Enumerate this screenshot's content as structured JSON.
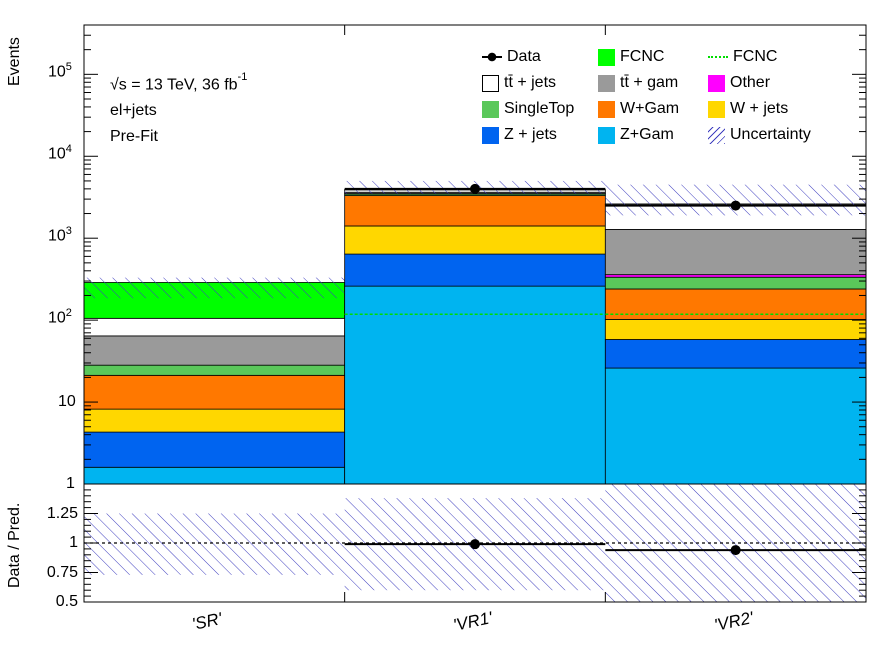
{
  "chart_data": {
    "type": "bar",
    "stacked": true,
    "categories": [
      "'SR'",
      "'VR1'",
      "'VR2'"
    ],
    "ylabel": "Events",
    "yscale": "log",
    "ylim": [
      1,
      400000
    ],
    "yticks": [
      {
        "v": 10,
        "label": "10"
      },
      {
        "v": 100,
        "label": "10",
        "exp": "2"
      },
      {
        "v": 1000,
        "label": "10",
        "exp": "3"
      },
      {
        "v": 10000,
        "label": "10",
        "exp": "4"
      },
      {
        "v": 100000,
        "label": "10",
        "exp": "5"
      }
    ],
    "annotations": {
      "energy": "√s = 13 TeV, 36 fb",
      "energy_exp": "-1",
      "channel": "el+jets",
      "stage": "Pre-Fit"
    },
    "series": [
      {
        "name": "Z+Gam",
        "color": "#00b4f0",
        "values": [
          1.6,
          260,
          26
        ]
      },
      {
        "name": "Z + jets",
        "color": "#0064f0",
        "values": [
          2.7,
          380,
          32
        ]
      },
      {
        "name": "W + jets",
        "color": "#ffd700",
        "values": [
          3.9,
          770,
          44
        ]
      },
      {
        "name": "W+Gam",
        "color": "#ff7800",
        "values": [
          13,
          1900,
          138
        ]
      },
      {
        "name": "SingleTop",
        "color": "#5ac85a",
        "values": [
          7,
          150,
          94
        ]
      },
      {
        "name": "Other",
        "color": "#ff00ff",
        "values": [
          0,
          40,
          25
        ]
      },
      {
        "name": "tt̄ +  gam",
        "color": "#9a9a9a",
        "values": [
          36,
          140,
          920
        ]
      },
      {
        "name": "tt̄ + jets",
        "color": "#ffffff",
        "values": [
          41,
          250,
          1320
        ]
      },
      {
        "name": "FCNC",
        "color": "#00ff00",
        "values": [
          183,
          30,
          20
        ]
      }
    ],
    "data": {
      "name": "Data",
      "values": [
        null,
        4000,
        2500
      ]
    },
    "fcnc_line": {
      "name": "FCNC",
      "color": "#00dd00",
      "values": [
        null,
        118,
        118
      ]
    },
    "uncertainty": {
      "name": "Uncertainty",
      "color": "#4040c0",
      "low": [
        185,
        3500,
        1900
      ],
      "high": [
        330,
        5000,
        4500
      ]
    },
    "legend": {
      "placement": "top-right",
      "items": [
        {
          "label": "Data",
          "kind": "data"
        },
        {
          "label": "FCNC",
          "kind": "fill",
          "color": "#00ff00"
        },
        {
          "label": "FCNC",
          "kind": "line",
          "color": "#00dd00"
        },
        {
          "label": "tt̄ + jets",
          "kind": "fill",
          "color": "#ffffff"
        },
        {
          "label": "tt̄ +  gam",
          "kind": "fill",
          "color": "#9a9a9a"
        },
        {
          "label": "Other",
          "kind": "fill",
          "color": "#ff00ff"
        },
        {
          "label": "SingleTop",
          "kind": "fill",
          "color": "#5ac85a"
        },
        {
          "label": "W+Gam",
          "kind": "fill",
          "color": "#ff7800"
        },
        {
          "label": "W + jets",
          "kind": "fill",
          "color": "#ffd700"
        },
        {
          "label": "Z + jets",
          "kind": "fill",
          "color": "#0064f0"
        },
        {
          "label": "Z+Gam",
          "kind": "fill",
          "color": "#00b4f0"
        },
        {
          "label": "Uncertainty",
          "kind": "hatch",
          "color": "#4040c0"
        }
      ]
    },
    "ratio": {
      "ylabel": "Data / Pred.",
      "ylim": [
        0.5,
        1.5
      ],
      "yticks": [
        "0.5",
        "0.75",
        "1",
        "1.25"
      ],
      "reference": 1,
      "values": [
        null,
        0.99,
        0.94
      ],
      "unc_low": [
        0.73,
        0.6,
        0.5
      ],
      "unc_high": [
        1.25,
        1.38,
        1.5
      ]
    }
  }
}
